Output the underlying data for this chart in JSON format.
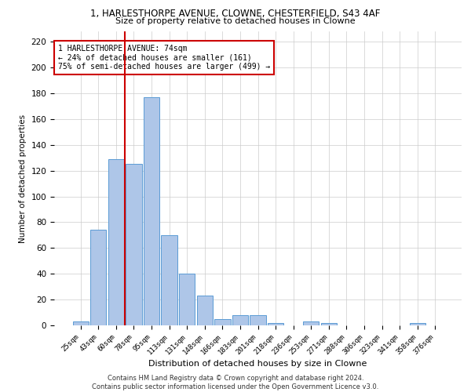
{
  "title1": "1, HARLESTHORPE AVENUE, CLOWNE, CHESTERFIELD, S43 4AF",
  "title2": "Size of property relative to detached houses in Clowne",
  "xlabel": "Distribution of detached houses by size in Clowne",
  "ylabel": "Number of detached properties",
  "footer1": "Contains HM Land Registry data © Crown copyright and database right 2024.",
  "footer2": "Contains public sector information licensed under the Open Government Licence v3.0.",
  "annotation_line1": "1 HARLESTHORPE AVENUE: 74sqm",
  "annotation_line2": "← 24% of detached houses are smaller (161)",
  "annotation_line3": "75% of semi-detached houses are larger (499) →",
  "bar_categories": [
    "25sqm",
    "43sqm",
    "60sqm",
    "78sqm",
    "95sqm",
    "113sqm",
    "131sqm",
    "148sqm",
    "166sqm",
    "183sqm",
    "201sqm",
    "218sqm",
    "236sqm",
    "253sqm",
    "271sqm",
    "288sqm",
    "306sqm",
    "323sqm",
    "341sqm",
    "358sqm",
    "376sqm"
  ],
  "bar_values": [
    3,
    74,
    129,
    125,
    177,
    70,
    40,
    23,
    5,
    8,
    8,
    2,
    0,
    3,
    2,
    0,
    0,
    0,
    0,
    2,
    0
  ],
  "bar_color": "#aec6e8",
  "bar_edgecolor": "#5b9bd5",
  "vline_color": "#cc0000",
  "vline_idx": 3,
  "ylim": [
    0,
    228
  ],
  "yticks": [
    0,
    20,
    40,
    60,
    80,
    100,
    120,
    140,
    160,
    180,
    200,
    220
  ],
  "box_color": "#cc0000",
  "bg_color": "#ffffff",
  "grid_color": "#cccccc"
}
